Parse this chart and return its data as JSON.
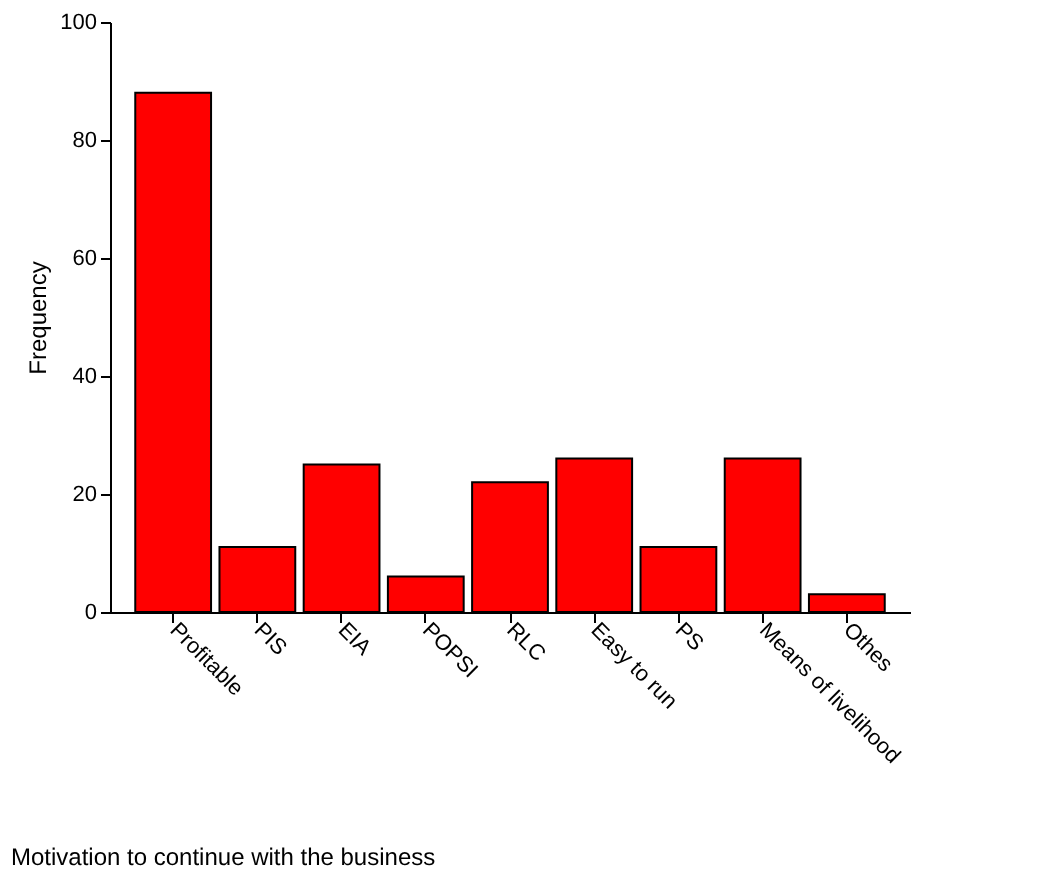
{
  "chart_data": {
    "type": "bar",
    "xlabel": "Motivation to continue with the business",
    "ylabel": "Frequency",
    "categories": [
      "Profitable",
      "PIS",
      "EIA",
      "POPSI",
      "RLC",
      "Easy to run",
      "PS",
      "Means of livelihood",
      "Othes"
    ],
    "values": [
      88,
      11,
      25,
      6,
      22,
      26,
      11,
      26,
      3
    ],
    "color": "#ff0000",
    "ylim": [
      0,
      100
    ],
    "yticks": [
      0,
      20,
      40,
      60,
      80,
      100
    ],
    "grid": false
  }
}
